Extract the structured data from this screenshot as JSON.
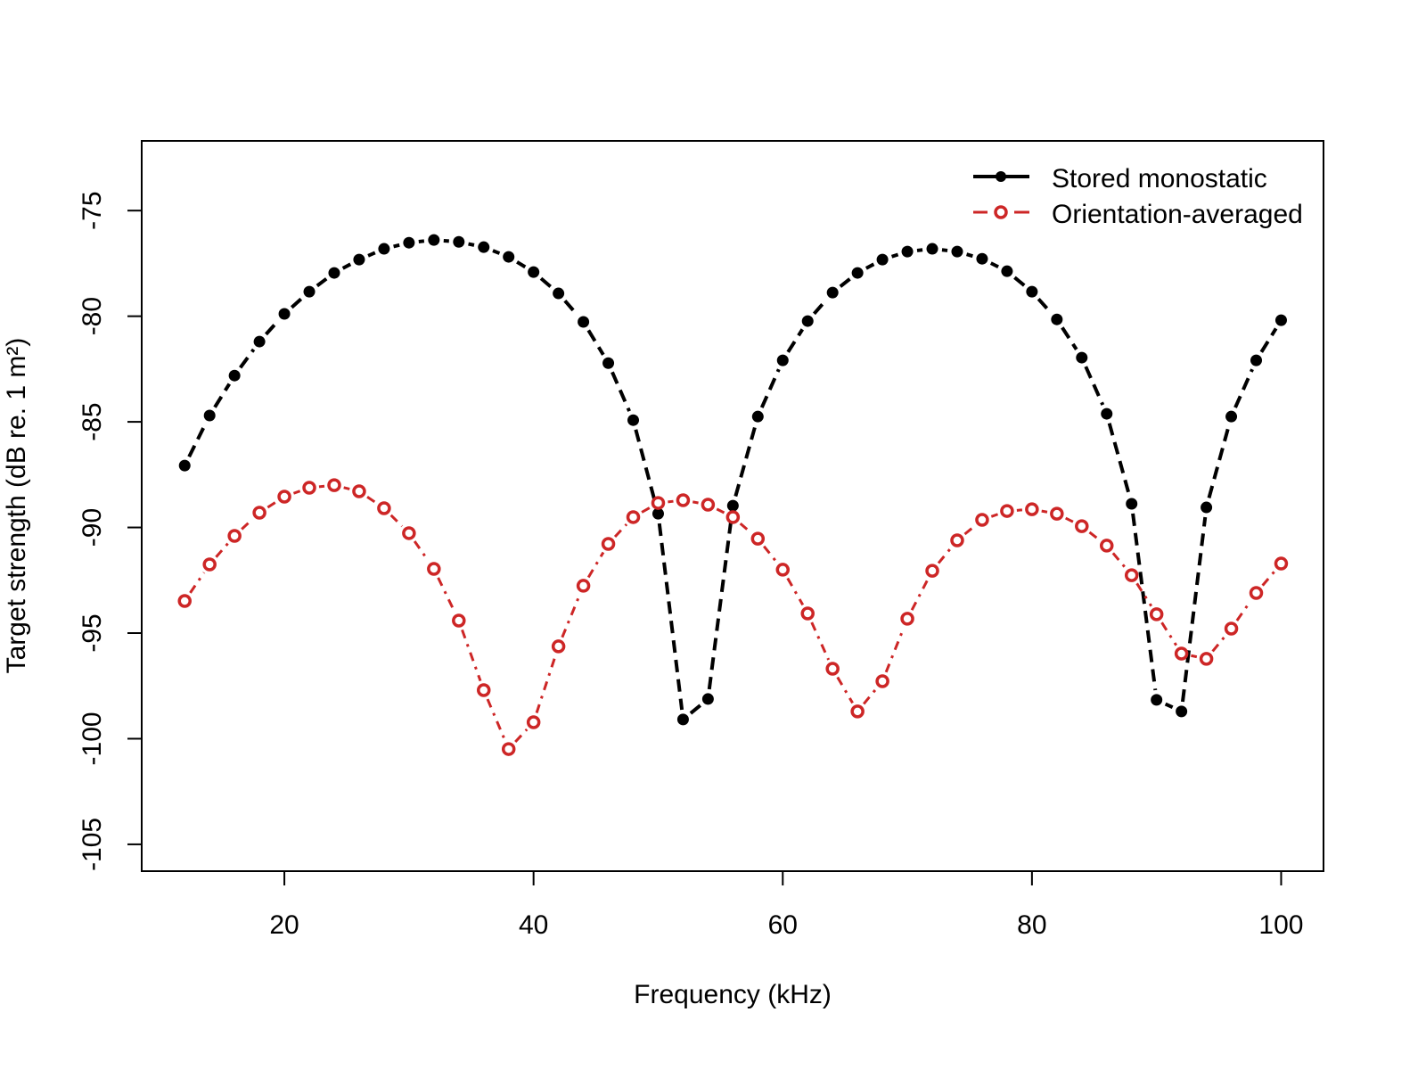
{
  "chart_data": {
    "type": "line",
    "title": "",
    "xlabel": "Frequency (kHz)",
    "ylabel": "Target strength (dB re. 1 m²)",
    "xlim": [
      8.55,
      103.4
    ],
    "ylim": [
      -106.27,
      -71.7
    ],
    "xticks": [
      20,
      40,
      60,
      80,
      100
    ],
    "yticks": [
      -75,
      -80,
      -85,
      -90,
      -95,
      -100,
      -105
    ],
    "grid": false,
    "legend_position": "top-right",
    "x": [
      12,
      14,
      16,
      18,
      20,
      22,
      24,
      26,
      28,
      30,
      32,
      34,
      36,
      38,
      40,
      42,
      44,
      46,
      48,
      50,
      52,
      54,
      56,
      58,
      60,
      62,
      64,
      66,
      68,
      70,
      72,
      74,
      76,
      78,
      80,
      82,
      84,
      86,
      88,
      90,
      92,
      94,
      96,
      98,
      100
    ],
    "series": [
      {
        "name": "Stored monostatic",
        "color": "#000000",
        "marker": "filled-circle",
        "values": [
          -87.07,
          -84.7,
          -82.81,
          -81.2,
          -79.89,
          -78.84,
          -77.95,
          -77.32,
          -76.81,
          -76.52,
          -76.39,
          -76.48,
          -76.73,
          -77.19,
          -77.91,
          -78.92,
          -80.27,
          -82.22,
          -84.92,
          -89.35,
          -99.09,
          -98.12,
          -88.97,
          -84.75,
          -82.09,
          -80.23,
          -78.88,
          -77.95,
          -77.32,
          -76.94,
          -76.81,
          -76.94,
          -77.28,
          -77.87,
          -78.84,
          -80.15,
          -81.96,
          -84.62,
          -88.88,
          -98.16,
          -98.71,
          -89.05,
          -84.75,
          -82.09,
          -80.19
        ]
      },
      {
        "name": "Orientation-averaged",
        "color": "#CD2626",
        "marker": "open-circle",
        "values": [
          -93.48,
          -91.75,
          -90.4,
          -89.3,
          -88.54,
          -88.12,
          -88.0,
          -88.29,
          -89.09,
          -90.27,
          -91.96,
          -94.41,
          -97.7,
          -100.49,
          -99.22,
          -95.63,
          -92.76,
          -90.78,
          -89.51,
          -88.84,
          -88.71,
          -88.92,
          -89.51,
          -90.53,
          -92.0,
          -94.07,
          -96.69,
          -98.71,
          -97.28,
          -94.32,
          -92.05,
          -90.61,
          -89.64,
          -89.22,
          -89.14,
          -89.35,
          -89.94,
          -90.86,
          -92.26,
          -94.11,
          -95.97,
          -96.22,
          -94.79,
          -93.1,
          -91.71
        ]
      }
    ]
  }
}
